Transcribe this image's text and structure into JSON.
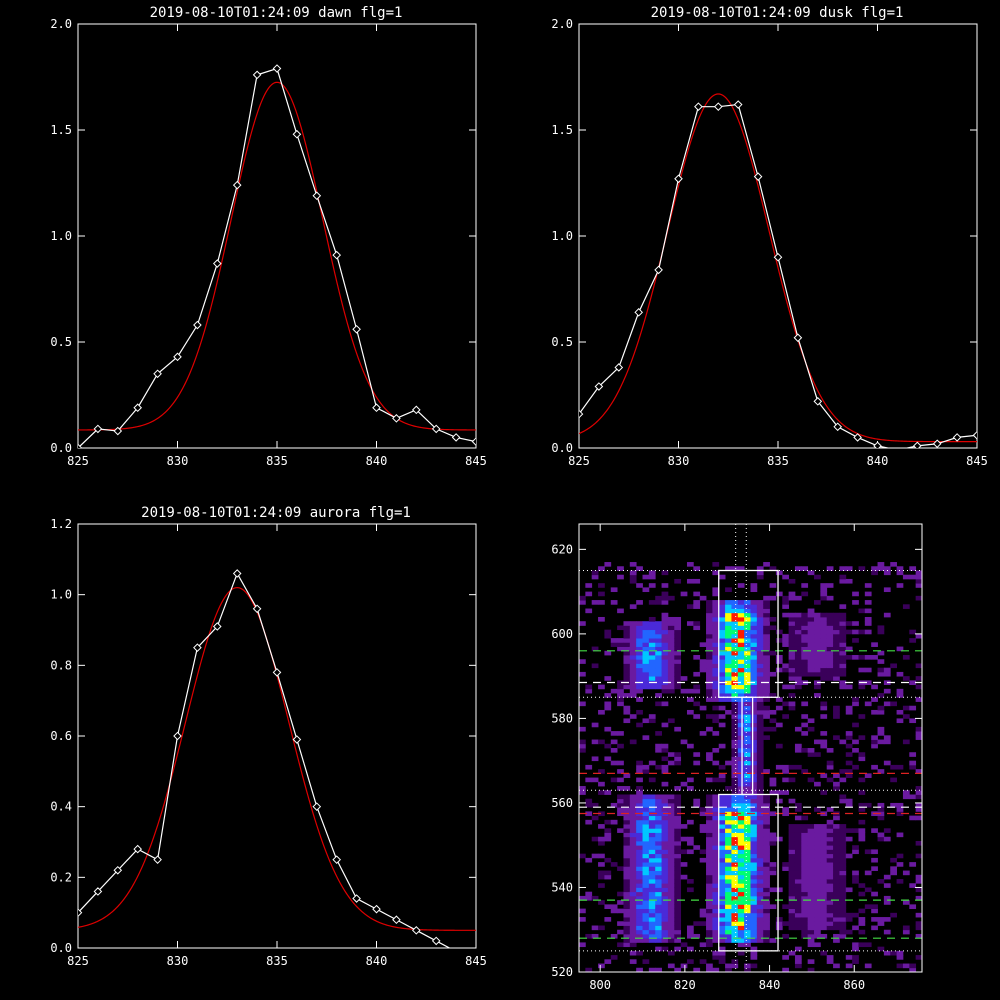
{
  "colors": {
    "background": "#000000",
    "axes": "#ffffff",
    "data_line": "#ffffff",
    "fit_line": "#dd0000",
    "guide_green": "#44dd44",
    "guide_red": "#dd2222",
    "guide_white": "#ffffff"
  },
  "chart_data": [
    {
      "id": "dawn",
      "type": "line",
      "title": "2019-08-10T01:24:09 dawn flg=1",
      "xlim": [
        825,
        845
      ],
      "ylim": [
        0,
        2.0
      ],
      "xticks": [
        825,
        830,
        835,
        840,
        845
      ],
      "yticks": [
        0.0,
        0.5,
        1.0,
        1.5,
        2.0
      ],
      "xtick_labels": [
        "825",
        "830",
        "835",
        "840",
        "845"
      ],
      "ytick_labels": [
        "0.0",
        "0.5",
        "1.0",
        "1.5",
        "2.0"
      ],
      "marker": "diamond",
      "series": [
        {
          "role": "data",
          "x": [
            825,
            826,
            827,
            828,
            829,
            830,
            831,
            832,
            833,
            834,
            835,
            836,
            837,
            838,
            839,
            840,
            841,
            842,
            843,
            844,
            845
          ],
          "y": [
            0.0,
            0.09,
            0.08,
            0.19,
            0.35,
            0.43,
            0.58,
            0.87,
            1.24,
            1.76,
            1.79,
            1.48,
            1.19,
            0.91,
            0.56,
            0.19,
            0.14,
            0.18,
            0.09,
            0.05,
            0.03
          ]
        },
        {
          "role": "fit",
          "gaussian": {
            "amplitude": 1.64,
            "center": 835.0,
            "sigma": 2.3,
            "offset": 0.085
          }
        }
      ]
    },
    {
      "id": "dusk",
      "type": "line",
      "title": "2019-08-10T01:24:09 dusk flg=1",
      "xlim": [
        825,
        845
      ],
      "ylim": [
        0,
        2.0
      ],
      "xticks": [
        825,
        830,
        835,
        840,
        845
      ],
      "yticks": [
        0.0,
        0.5,
        1.0,
        1.5,
        2.0
      ],
      "xtick_labels": [
        "825",
        "830",
        "835",
        "840",
        "845"
      ],
      "ytick_labels": [
        "0.0",
        "0.5",
        "1.0",
        "1.5",
        "2.0"
      ],
      "marker": "diamond",
      "series": [
        {
          "role": "data",
          "x": [
            825,
            826,
            827,
            828,
            829,
            830,
            831,
            832,
            833,
            834,
            835,
            836,
            837,
            838,
            839,
            840,
            841,
            842,
            843,
            844,
            845
          ],
          "y": [
            0.16,
            0.29,
            0.38,
            0.64,
            0.84,
            1.27,
            1.61,
            1.61,
            1.62,
            1.28,
            0.9,
            0.52,
            0.22,
            0.1,
            0.05,
            0.01,
            -0.01,
            0.01,
            0.02,
            0.05,
            0.06
          ]
        },
        {
          "role": "fit",
          "gaussian": {
            "amplitude": 1.64,
            "center": 832.0,
            "sigma": 2.55,
            "offset": 0.03
          }
        }
      ]
    },
    {
      "id": "aurora",
      "type": "line",
      "title": "2019-08-10T01:24:09 aurora flg=1",
      "xlim": [
        825,
        845
      ],
      "ylim": [
        0,
        1.2
      ],
      "xticks": [
        825,
        830,
        835,
        840,
        845
      ],
      "yticks": [
        0.0,
        0.2,
        0.4,
        0.6,
        0.8,
        1.0,
        1.2
      ],
      "xtick_labels": [
        "825",
        "830",
        "835",
        "840",
        "845"
      ],
      "ytick_labels": [
        "0.0",
        "0.2",
        "0.4",
        "0.6",
        "0.8",
        "1.0",
        "1.2"
      ],
      "marker": "diamond",
      "series": [
        {
          "role": "data",
          "x": [
            825,
            826,
            827,
            828,
            829,
            830,
            831,
            832,
            833,
            834,
            835,
            836,
            837,
            838,
            839,
            840,
            841,
            842,
            843,
            844,
            845
          ],
          "y": [
            0.1,
            0.16,
            0.22,
            0.28,
            0.25,
            0.6,
            0.85,
            0.91,
            1.06,
            0.96,
            0.78,
            0.59,
            0.4,
            0.25,
            0.14,
            0.11,
            0.08,
            0.05,
            0.02,
            -0.01,
            -0.04
          ]
        },
        {
          "role": "fit",
          "gaussian": {
            "amplitude": 0.97,
            "center": 833.0,
            "sigma": 2.6,
            "offset": 0.05
          }
        }
      ]
    },
    {
      "id": "spectrogram",
      "type": "heatmap",
      "title": "",
      "xlim": [
        795,
        876
      ],
      "ylim": [
        520,
        626
      ],
      "xticks": [
        800,
        820,
        840,
        860
      ],
      "yticks": [
        520,
        540,
        560,
        580,
        600,
        620
      ],
      "xtick_labels": [
        "800",
        "820",
        "840",
        "860"
      ],
      "ytick_labels": [
        "520",
        "540",
        "560",
        "580",
        "600",
        "620"
      ],
      "colormap": [
        "#000000",
        "#3a005a",
        "#6a1aa0",
        "#4a2ad8",
        "#2266ff",
        "#00c8ff",
        "#00ff70",
        "#ffff00",
        "#ff1a00"
      ],
      "bands": [
        {
          "x_center": 812.0,
          "x_width": 5.0,
          "y_ranges": [
            [
              587,
              603
            ],
            [
              527,
              562
            ]
          ],
          "intensity": 0.5
        },
        {
          "x_center": 832.5,
          "x_width": 5.5,
          "y_ranges": [
            [
              527,
              562
            ],
            [
              584,
              608
            ]
          ],
          "intensity": 0.85
        },
        {
          "x_center": 834.5,
          "x_width": 2.5,
          "y_ranges": [
            [
              562,
              585
            ]
          ],
          "intensity": 0.45
        },
        {
          "x_center": 851.0,
          "x_width": 5.0,
          "y_ranges": [
            [
              530,
              555
            ],
            [
              590,
              605
            ]
          ],
          "intensity": 0.15
        }
      ],
      "boxes": [
        {
          "x": [
            828,
            842
          ],
          "y": [
            585,
            615
          ]
        },
        {
          "x": [
            828,
            842
          ],
          "y": [
            525,
            562
          ]
        },
        {
          "x": [
            833.5,
            836
          ],
          "y": [
            562,
            585
          ]
        }
      ],
      "dotted_hlines": [
        615,
        585,
        563,
        525
      ],
      "dotted_vlines": [
        832,
        834.5
      ],
      "dashed_hlines": [
        {
          "y": 596,
          "color": "green"
        },
        {
          "y": 588.5,
          "color": "white"
        },
        {
          "y": 567,
          "color": "red"
        },
        {
          "y": 559,
          "color": "white"
        },
        {
          "y": 557.5,
          "color": "red"
        },
        {
          "y": 537,
          "color": "green"
        },
        {
          "y": 528,
          "color": "green"
        }
      ]
    }
  ]
}
